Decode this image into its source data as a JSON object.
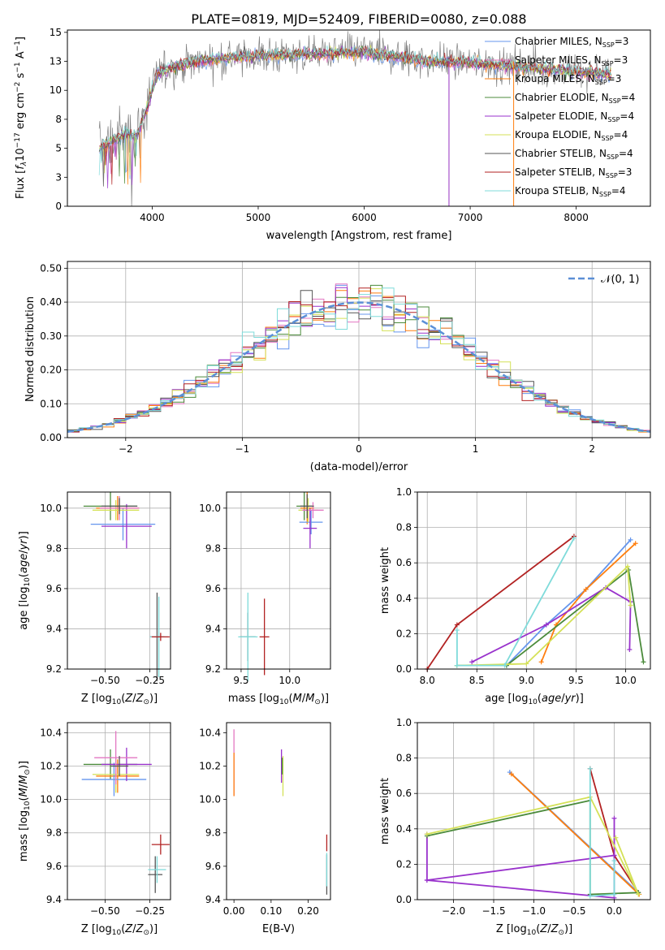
{
  "figure": {
    "title": "PLATE=0819, MJD=52409, FIBERID=0080, z=0.088"
  },
  "chart_data": [
    {
      "id": "spectrum",
      "type": "line",
      "xlabel": "wavelength [Angstrom, rest frame]",
      "ylabel_parts": [
        "Flux [",
        "f",
        "λ",
        "10",
        "−17",
        " erg cm",
        "−2",
        " s",
        "−1",
        " A",
        "−1",
        "]"
      ],
      "xlim": [
        3200,
        8700
      ],
      "ylim": [
        0,
        15.2
      ],
      "xticks": [
        4000,
        5000,
        6000,
        7000,
        8000
      ],
      "yticks": [
        0.0,
        2.5,
        5.0,
        7.5,
        10.0,
        12.5,
        15.0
      ],
      "grid": false,
      "legend_position": "right",
      "continuum_knots_x": [
        3500,
        3620,
        3750,
        3850,
        3950,
        4050,
        4200,
        4400,
        4700,
        5000,
        5500,
        6000,
        6500,
        7000,
        7500,
        8000,
        8300
      ],
      "continuum_knots_y": [
        5.0,
        5.6,
        6.2,
        6.0,
        8.5,
        11.5,
        12.0,
        12.5,
        12.8,
        13.0,
        13.1,
        13.3,
        12.6,
        12.4,
        12.0,
        11.6,
        11.4
      ],
      "series": [
        {
          "name": "Chabrier MILES, N",
          "sub": "SSP",
          "suffix": "=3",
          "color": "#6495ed"
        },
        {
          "name": "Salpeter MILES, N",
          "sub": "SSP",
          "suffix": "=3",
          "color": "#e377c2"
        },
        {
          "name": "Kroupa MILES, N",
          "sub": "SSP",
          "suffix": "=3",
          "color": "#ff7f0e"
        },
        {
          "name": "Chabrier ELODIE, N",
          "sub": "SSP",
          "suffix": "=4",
          "color": "#4b8b3b"
        },
        {
          "name": "Salpeter ELODIE, N",
          "sub": "SSP",
          "suffix": "=4",
          "color": "#9932cc"
        },
        {
          "name": "Kroupa ELODIE, N",
          "sub": "SSP",
          "suffix": "=4",
          "color": "#d4e157"
        },
        {
          "name": "Chabrier STELIB, N",
          "sub": "SSP",
          "suffix": "=4",
          "color": "#555555"
        },
        {
          "name": "Salpeter STELIB, N",
          "sub": "SSP",
          "suffix": "=3",
          "color": "#b22222"
        },
        {
          "name": "Kroupa STELIB, N",
          "sub": "SSP",
          "suffix": "=4",
          "color": "#7fdbda"
        }
      ],
      "data_color": "#808080"
    },
    {
      "id": "residuals",
      "type": "histogram",
      "xlabel": "(data-model)/error",
      "ylabel": "Normed distribution",
      "xlim": [
        -2.5,
        2.5
      ],
      "ylim": [
        0,
        0.52
      ],
      "xticks": [
        -2,
        -1,
        0,
        1,
        2
      ],
      "yticks": [
        0.0,
        0.1,
        0.2,
        0.3,
        0.4,
        0.5
      ],
      "grid": true,
      "bin_width": 0.1,
      "reference_curve": {
        "name": "𝒩(0, 1)",
        "color": "#5b8fd6",
        "style": "dashed"
      },
      "legend_position": "top-right"
    },
    {
      "id": "age_vs_Z",
      "type": "scatter-errorbar",
      "xlabel": "Z [log10(Z/Z⊙)]",
      "ylabel": "age  [log10(age/yr)]",
      "xlim": [
        -0.71,
        -0.135
      ],
      "ylim": [
        9.2,
        10.08
      ],
      "xticks": [
        -0.5,
        -0.25
      ],
      "yticks": [
        9.2,
        9.4,
        9.6,
        9.8,
        10.0
      ],
      "grid": true,
      "points": [
        {
          "x": -0.47,
          "y": 10.01,
          "xerr": 0.15,
          "yerr": 0.07,
          "color": "#4b8b3b"
        },
        {
          "x": -0.43,
          "y": 10.0,
          "xerr": 0.12,
          "yerr": 0.06,
          "color": "#ff7f0e"
        },
        {
          "x": -0.4,
          "y": 9.92,
          "xerr": 0.18,
          "yerr": 0.08,
          "color": "#6495ed"
        },
        {
          "x": -0.38,
          "y": 9.91,
          "xerr": 0.14,
          "yerr": 0.11,
          "color": "#9932cc"
        },
        {
          "x": -0.44,
          "y": 9.99,
          "xerr": 0.13,
          "yerr": 0.05,
          "color": "#d4e157"
        },
        {
          "x": -0.42,
          "y": 10.0,
          "xerr": 0.11,
          "yerr": 0.06,
          "color": "#e377c2"
        },
        {
          "x": -0.42,
          "y": 10.01,
          "xerr": 0.1,
          "yerr": 0.04,
          "color": "#555555"
        },
        {
          "x": -0.21,
          "y": 9.36,
          "xerr": 0.04,
          "yerr": 0.22,
          "color": "#555555"
        },
        {
          "x": -0.2,
          "y": 9.36,
          "xerr": 0.05,
          "yerr": 0.2,
          "color": "#7fdbda"
        },
        {
          "x": -0.19,
          "y": 9.36,
          "xerr": 0.05,
          "yerr": 0.02,
          "color": "#b22222"
        }
      ]
    },
    {
      "id": "age_vs_mass",
      "type": "scatter-errorbar",
      "xlabel": "mass [log10(M/M⊙)]",
      "ylabel": "",
      "xlim": [
        9.35,
        10.42
      ],
      "ylim": [
        9.2,
        10.08
      ],
      "xticks": [
        9.5,
        10.0
      ],
      "yticks": [
        9.2,
        9.4,
        9.6,
        9.8,
        10.0
      ],
      "grid": true,
      "points": [
        {
          "x": 10.15,
          "y": 10.01,
          "xerr": 0.08,
          "yerr": 0.07,
          "color": "#4b8b3b"
        },
        {
          "x": 10.18,
          "y": 10.0,
          "xerr": 0.07,
          "yerr": 0.08,
          "color": "#ff7f0e"
        },
        {
          "x": 10.22,
          "y": 9.93,
          "xerr": 0.12,
          "yerr": 0.06,
          "color": "#6495ed"
        },
        {
          "x": 10.21,
          "y": 9.9,
          "xerr": 0.07,
          "yerr": 0.1,
          "color": "#9932cc"
        },
        {
          "x": 10.19,
          "y": 9.99,
          "xerr": 0.1,
          "yerr": 0.06,
          "color": "#d4e157"
        },
        {
          "x": 10.24,
          "y": 9.99,
          "xerr": 0.11,
          "yerr": 0.04,
          "color": "#e377c2"
        },
        {
          "x": 10.18,
          "y": 10.01,
          "xerr": 0.07,
          "yerr": 0.06,
          "color": "#555555"
        },
        {
          "x": 9.57,
          "y": 9.36,
          "xerr": 0.08,
          "yerr": 0.12,
          "color": "#555555"
        },
        {
          "x": 9.57,
          "y": 9.36,
          "xerr": 0.1,
          "yerr": 0.22,
          "color": "#7fdbda"
        },
        {
          "x": 9.74,
          "y": 9.36,
          "xerr": 0.05,
          "yerr": 0.19,
          "color": "#b22222"
        }
      ]
    },
    {
      "id": "weight_vs_age",
      "type": "line",
      "xlabel": "age  [log10(age/yr)]",
      "ylabel": "mass weight",
      "xlim": [
        7.9,
        10.25
      ],
      "ylim": [
        0,
        1
      ],
      "xticks": [
        8.0,
        8.5,
        9.0,
        9.5,
        10.0
      ],
      "yticks": [
        0.0,
        0.2,
        0.4,
        0.6,
        0.8,
        1.0
      ],
      "grid": true,
      "series": [
        {
          "color": "#b22222",
          "x": [
            8.0,
            8.3,
            9.48
          ],
          "y": [
            0.0,
            0.25,
            0.75
          ]
        },
        {
          "color": "#6495ed",
          "x": [
            8.8,
            9.2,
            9.6,
            10.05
          ],
          "y": [
            0.02,
            0.25,
            0.45,
            0.73
          ]
        },
        {
          "color": "#ff7f0e",
          "x": [
            9.15,
            9.3,
            9.6,
            10.1
          ],
          "y": [
            0.04,
            0.25,
            0.45,
            0.71
          ]
        },
        {
          "color": "#9932cc",
          "x": [
            8.45,
            9.2,
            9.8,
            10.05,
            10.04
          ],
          "y": [
            0.04,
            0.25,
            0.46,
            0.38,
            0.11
          ]
        },
        {
          "color": "#4b8b3b",
          "x": [
            8.3,
            8.8,
            10.03,
            10.18
          ],
          "y": [
            0.02,
            0.02,
            0.56,
            0.04
          ]
        },
        {
          "color": "#d4e157",
          "x": [
            8.3,
            9.0,
            10.02,
            10.05
          ],
          "y": [
            0.02,
            0.03,
            0.58,
            0.36
          ]
        },
        {
          "color": "#7fdbda",
          "x": [
            8.3,
            8.3,
            8.78,
            9.48
          ],
          "y": [
            0.22,
            0.02,
            0.02,
            0.74
          ]
        }
      ]
    },
    {
      "id": "mass_vs_Z",
      "type": "scatter-errorbar",
      "xlabel": "Z [log10(Z/Z⊙)]",
      "ylabel": "mass [log10(M/M⊙)]",
      "xlim": [
        -0.71,
        -0.135
      ],
      "ylim": [
        9.4,
        10.46
      ],
      "xticks": [
        -0.5,
        -0.25
      ],
      "yticks": [
        9.4,
        9.6,
        9.8,
        10.0,
        10.2,
        10.4
      ],
      "grid": true,
      "points": [
        {
          "x": -0.47,
          "y": 10.21,
          "xerr": 0.15,
          "yerr": 0.09,
          "color": "#4b8b3b"
        },
        {
          "x": -0.43,
          "y": 10.14,
          "xerr": 0.12,
          "yerr": 0.1,
          "color": "#ff7f0e"
        },
        {
          "x": -0.45,
          "y": 10.12,
          "xerr": 0.18,
          "yerr": 0.1,
          "color": "#6495ed"
        },
        {
          "x": -0.38,
          "y": 10.21,
          "xerr": 0.14,
          "yerr": 0.1,
          "color": "#9932cc"
        },
        {
          "x": -0.44,
          "y": 10.15,
          "xerr": 0.13,
          "yerr": 0.11,
          "color": "#d4e157"
        },
        {
          "x": -0.44,
          "y": 10.25,
          "xerr": 0.12,
          "yerr": 0.16,
          "color": "#e377c2"
        },
        {
          "x": -0.42,
          "y": 10.2,
          "xerr": 0.05,
          "yerr": 0.06,
          "color": "#555555"
        },
        {
          "x": -0.22,
          "y": 9.55,
          "xerr": 0.04,
          "yerr": 0.11,
          "color": "#555555"
        },
        {
          "x": -0.21,
          "y": 9.58,
          "xerr": 0.05,
          "yerr": 0.08,
          "color": "#7fdbda"
        },
        {
          "x": -0.19,
          "y": 9.73,
          "xerr": 0.05,
          "yerr": 0.06,
          "color": "#b22222"
        }
      ]
    },
    {
      "id": "mass_vs_ebv",
      "type": "scatter-errorbar",
      "xlabel": "E(B-V)",
      "ylabel": "",
      "xlim": [
        -0.02,
        0.26
      ],
      "ylim": [
        9.4,
        10.46
      ],
      "xticks": [
        0.0,
        0.1,
        0.2
      ],
      "yticks": [
        9.4,
        9.6,
        9.8,
        10.0,
        10.2,
        10.4
      ],
      "grid": false,
      "points": [
        {
          "x": 0.0,
          "y": 10.22,
          "xerr": 0.0,
          "yerr": 0.2,
          "color": "#e377c2"
        },
        {
          "x": 0.0,
          "y": 10.15,
          "xerr": 0.0,
          "yerr": 0.13,
          "color": "#ff7f0e"
        },
        {
          "x": 0.128,
          "y": 10.2,
          "xerr": 0.0,
          "yerr": 0.1,
          "color": "#9932cc"
        },
        {
          "x": 0.132,
          "y": 10.14,
          "xerr": 0.0,
          "yerr": 0.12,
          "color": "#d4e157"
        },
        {
          "x": 0.13,
          "y": 10.2,
          "xerr": 0.0,
          "yerr": 0.05,
          "color": "#4b8b3b"
        },
        {
          "x": 0.25,
          "y": 9.55,
          "xerr": 0.0,
          "yerr": 0.12,
          "color": "#555555"
        },
        {
          "x": 0.25,
          "y": 9.58,
          "xerr": 0.0,
          "yerr": 0.1,
          "color": "#7fdbda"
        },
        {
          "x": 0.25,
          "y": 9.74,
          "xerr": 0.0,
          "yerr": 0.05,
          "color": "#b22222"
        }
      ]
    },
    {
      "id": "weight_vs_Z",
      "type": "line",
      "xlabel": "Z [log10(Z/Z⊙)]",
      "ylabel": "mass weight",
      "xlim": [
        -2.45,
        0.45
      ],
      "ylim": [
        0,
        1
      ],
      "xticks": [
        -2.0,
        -1.5,
        -1.0,
        -0.5,
        0.0
      ],
      "yticks": [
        0.0,
        0.2,
        0.4,
        0.6,
        0.8,
        1.0
      ],
      "grid": true,
      "series": [
        {
          "color": "#b22222",
          "x": [
            -0.3,
            0.0,
            0.3
          ],
          "y": [
            0.74,
            0.25,
            0.04
          ]
        },
        {
          "color": "#6495ed",
          "x": [
            -1.3,
            0.3
          ],
          "y": [
            0.72,
            0.04
          ]
        },
        {
          "color": "#ff7f0e",
          "x": [
            -1.28,
            0.31
          ],
          "y": [
            0.71,
            0.03
          ]
        },
        {
          "color": "#9932cc",
          "x": [
            -2.33,
            -2.33,
            0.0,
            0.0,
            0.0,
            -2.33
          ],
          "y": [
            0.37,
            0.11,
            0.01,
            0.46,
            0.25,
            0.11
          ]
        },
        {
          "color": "#4b8b3b",
          "x": [
            -2.33,
            -0.3,
            -0.3,
            0.3
          ],
          "y": [
            0.36,
            0.56,
            0.03,
            0.04
          ]
        },
        {
          "color": "#d4e157",
          "x": [
            -2.33,
            -0.3,
            0.3,
            0.02
          ],
          "y": [
            0.37,
            0.58,
            0.03,
            0.35
          ]
        },
        {
          "color": "#7fdbda",
          "x": [
            -0.3,
            -0.3,
            0.0,
            0.0
          ],
          "y": [
            0.74,
            0.02,
            0.03,
            0.22
          ]
        }
      ]
    }
  ]
}
